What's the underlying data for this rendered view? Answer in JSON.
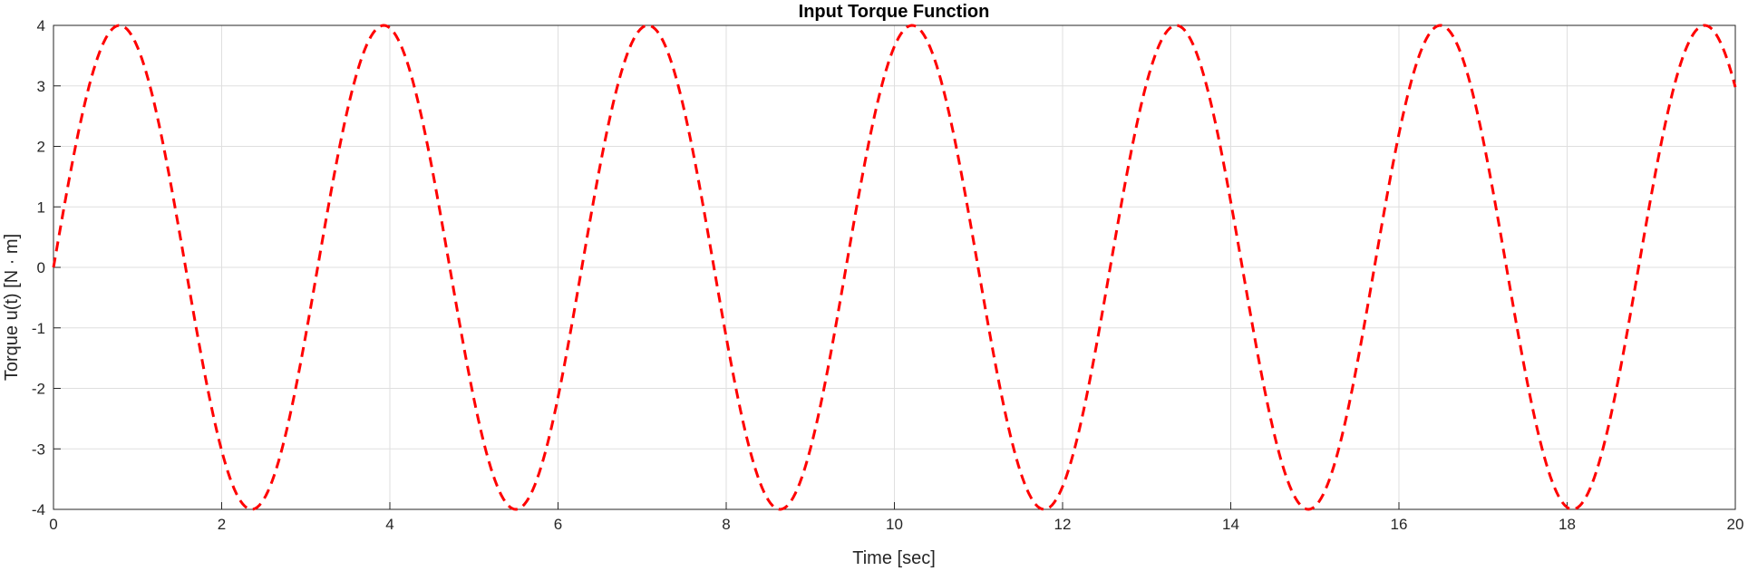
{
  "chart_data": {
    "type": "line",
    "title": "Input Torque Function",
    "xlabel": "Time [sec]",
    "ylabel": "Torque u(t) [N · m]",
    "xlim": [
      0,
      20
    ],
    "ylim": [
      -4,
      4
    ],
    "grid": true,
    "x_ticks": [
      0,
      2,
      4,
      6,
      8,
      10,
      12,
      14,
      16,
      18,
      20
    ],
    "x_tick_labels": [
      "0",
      "2",
      "4",
      "6",
      "8",
      "10",
      "12",
      "14",
      "16",
      "18",
      "20"
    ],
    "y_ticks": [
      -4,
      -3,
      -2,
      -1,
      0,
      1,
      2,
      3,
      4
    ],
    "y_tick_labels": [
      "-4",
      "-3",
      "-2",
      "-1",
      "0",
      "1",
      "2",
      "3",
      "4"
    ],
    "series": [
      {
        "line_style": "dashed",
        "color": "#ff0000",
        "function": "u(t) = 4 sin(2 t)",
        "x": [
          0,
          0.2,
          0.4,
          0.6,
          0.785,
          1.0,
          1.2,
          1.4,
          1.571,
          1.8,
          2.0,
          2.2,
          2.356,
          2.6,
          2.8,
          3.0,
          3.142,
          3.4,
          3.6,
          3.8,
          3.927,
          4.2,
          4.4,
          4.6,
          4.712,
          5.0,
          5.2,
          5.4,
          5.498,
          5.8,
          6.0,
          6.2,
          6.283,
          6.6,
          6.8,
          7.0,
          7.069,
          7.4,
          7.6,
          7.854,
          8.0,
          8.2,
          8.4,
          8.639,
          8.8,
          9.0,
          9.2,
          9.425,
          9.6,
          9.8,
          10.0,
          10.21,
          10.4,
          10.6,
          10.8,
          10.996,
          11.2,
          11.4,
          11.6,
          11.781,
          12.0,
          12.2,
          12.4,
          12.566,
          12.8,
          13.0,
          13.2,
          13.352,
          13.6,
          13.8,
          14.0,
          14.137,
          14.4,
          14.6,
          14.8,
          14.923,
          15.2,
          15.4,
          15.6,
          15.708,
          16.0,
          16.2,
          16.4,
          16.493,
          16.8,
          17.0,
          17.2,
          17.279,
          17.6,
          17.8,
          18.0,
          18.064,
          18.4,
          18.6,
          18.85,
          19.0,
          19.2,
          19.4,
          19.635,
          19.8,
          20.0
        ],
        "y": [
          0,
          1.56,
          2.87,
          3.73,
          4.0,
          3.64,
          2.7,
          1.34,
          0,
          -1.79,
          -3.03,
          -3.81,
          -4.0,
          -3.57,
          -2.52,
          -1.12,
          0,
          1.98,
          3.17,
          3.88,
          4.0,
          3.42,
          2.36,
          0.88,
          0,
          -2.18,
          -3.3,
          -3.92,
          -4.0,
          -3.29,
          -2.15,
          -0.69,
          0,
          2.4,
          3.44,
          3.96,
          4.0,
          3.09,
          1.86,
          0,
          -1.15,
          -2.56,
          -3.57,
          -4.0,
          -3.77,
          -2.99,
          -1.76,
          0,
          1.3,
          2.68,
          3.65,
          4.0,
          3.77,
          2.98,
          1.72,
          0,
          -1.49,
          -2.88,
          -3.77,
          -4.0,
          -3.63,
          -2.66,
          -1.19,
          0,
          1.66,
          3.04,
          3.88,
          4.0,
          3.48,
          2.42,
          1.0,
          0,
          -2.16,
          -3.28,
          -3.9,
          -4.0,
          -3.34,
          -2.26,
          -0.78,
          0,
          2.34,
          3.4,
          3.95,
          4.0,
          3.12,
          1.98,
          0.61,
          0,
          -2.55,
          -3.55,
          -3.99,
          -4.0,
          -3.01,
          -1.87,
          0,
          1.27,
          2.64,
          3.6,
          4.0,
          3.79,
          2.98
        ]
      }
    ]
  }
}
